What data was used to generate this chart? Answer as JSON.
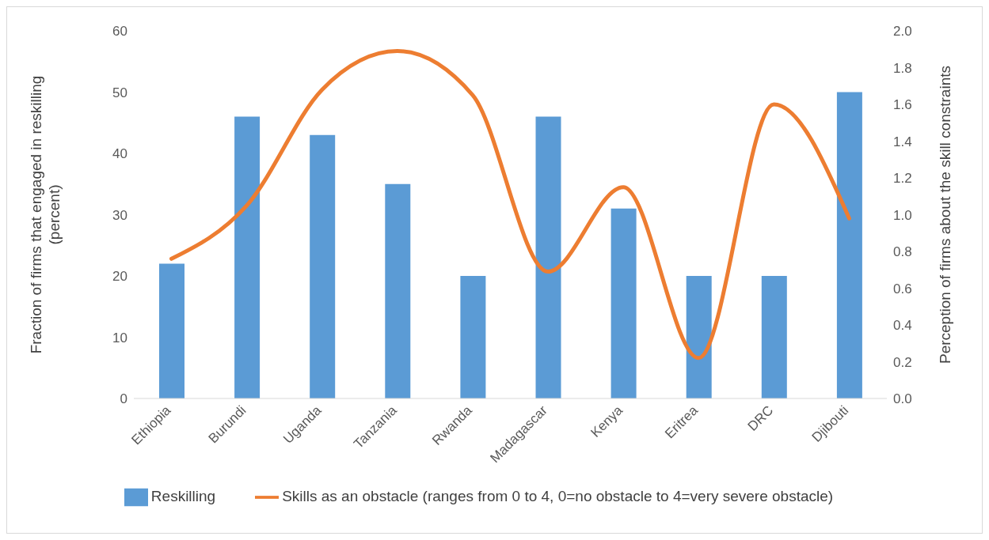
{
  "chart_data": {
    "type": "bar",
    "ylabel": "Fraction of firms that engaged in reskilling (percent)",
    "y2label": "Perception of firms about the skill constraints",
    "categories": [
      "Ethiopia",
      "Burundi",
      "Uganda",
      "Tanzania",
      "Rwanda",
      "Madagascar",
      "Kenya",
      "Eritrea",
      "DRC",
      "Djibouti"
    ],
    "series": [
      {
        "name": "Reskilling",
        "color": "#5b9bd5",
        "values": [
          22,
          46,
          43,
          35,
          20,
          46,
          31,
          20,
          20,
          50
        ]
      },
      {
        "name": "Skills as an obstacle (ranges from 0 to 4, 0=no obstacle to 4=very severe obstacle)",
        "type": "line",
        "axis": "y2",
        "color": "#ed7d31",
        "values": [
          0.76,
          1.05,
          1.68,
          1.89,
          1.65,
          0.69,
          1.15,
          0.22,
          1.6,
          0.98
        ]
      }
    ],
    "ylim": [
      0,
      60
    ],
    "yticks": [
      0,
      10,
      20,
      30,
      40,
      50,
      60
    ],
    "y2lim": [
      0,
      2
    ],
    "y2ticks": [
      {
        "value": 0,
        "label": "0.0"
      },
      {
        "value": 0.2,
        "label": "0.2"
      },
      {
        "value": 0.4,
        "label": "0.4"
      },
      {
        "value": 0.6,
        "label": "0.6"
      },
      {
        "value": 0.8,
        "label": "0.8"
      },
      {
        "value": 1,
        "label": "1.0"
      },
      {
        "value": 1.2,
        "label": "1.2"
      },
      {
        "value": 1.4,
        "label": "1.4"
      },
      {
        "value": 1.6,
        "label": "1.6"
      },
      {
        "value": 1.8,
        "label": "1.8"
      },
      {
        "value": 2,
        "label": "2.0"
      }
    ],
    "grid": false,
    "legend": "bottom"
  }
}
